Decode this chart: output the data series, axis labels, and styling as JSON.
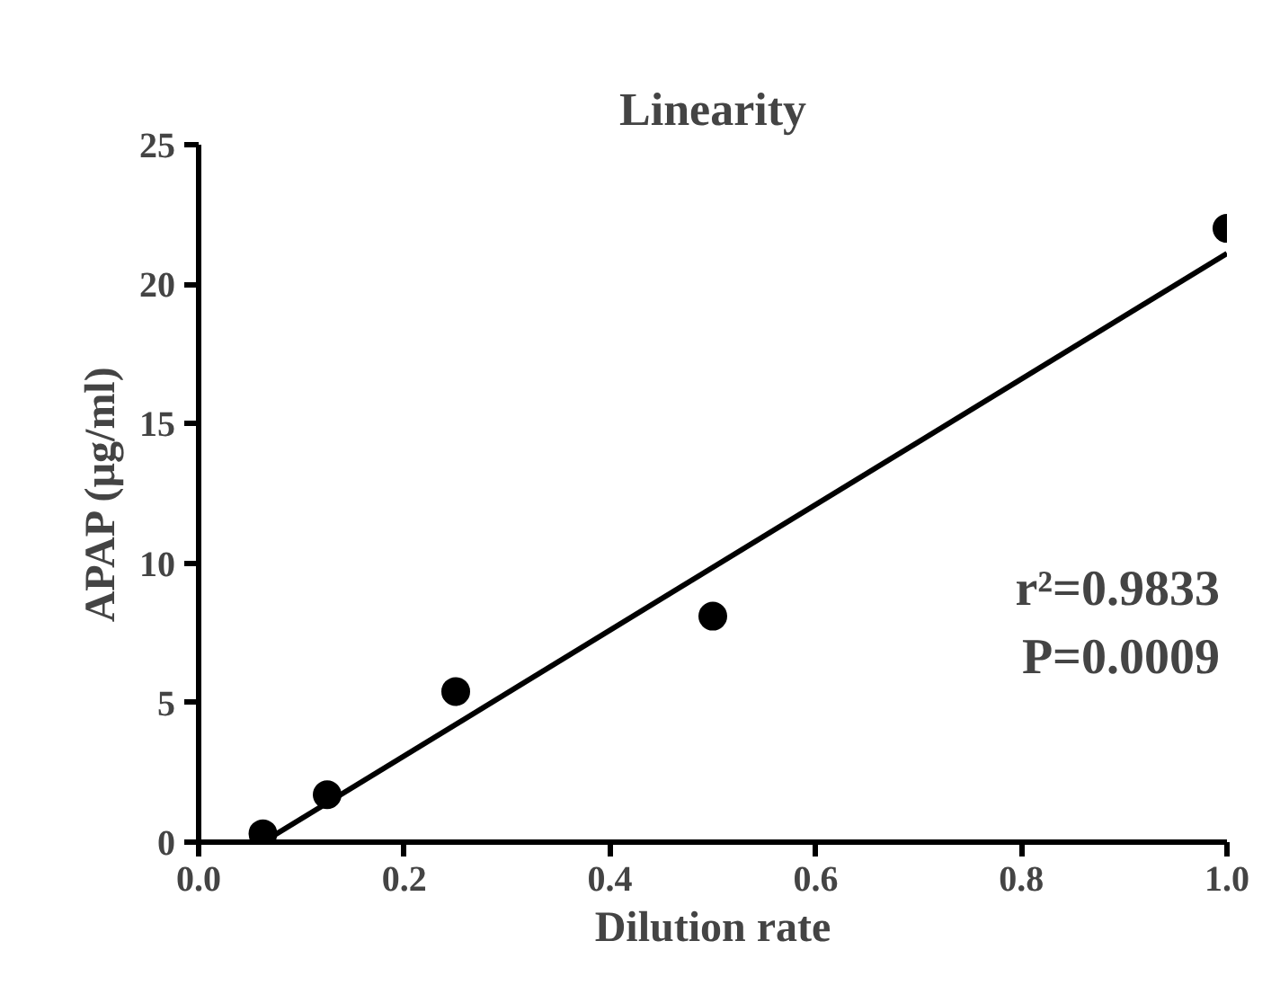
{
  "chart_data": {
    "type": "scatter",
    "title": "Linearity",
    "xlabel": "Dilution rate",
    "ylabel": "APAP (µg/ml)",
    "xlim": [
      0,
      1.0
    ],
    "xticks": [
      {
        "value": 0,
        "label": "0.0"
      },
      0.2,
      0.4,
      0.6,
      0.8,
      {
        "value": 1.0,
        "label": "1.0"
      }
    ],
    "ylim": [
      0,
      25
    ],
    "yticks": [
      0,
      5,
      10,
      15,
      20,
      25
    ],
    "grid": false,
    "series": [
      {
        "marker": "circle",
        "color": "#000000",
        "x": [
          0.0625,
          0.125,
          0.25,
          0.5,
          1.0
        ],
        "values": [
          0.3,
          1.7,
          5.4,
          8.1,
          22.0
        ]
      },
      {
        "type": "line",
        "marker": "none",
        "line_style": "solid",
        "color": "#000000",
        "x": [
          0.0625,
          1.0
        ],
        "values": [
          0.0,
          21.1
        ]
      }
    ],
    "annotations": [
      "r²=0.9833",
      "P=0.0009"
    ]
  }
}
